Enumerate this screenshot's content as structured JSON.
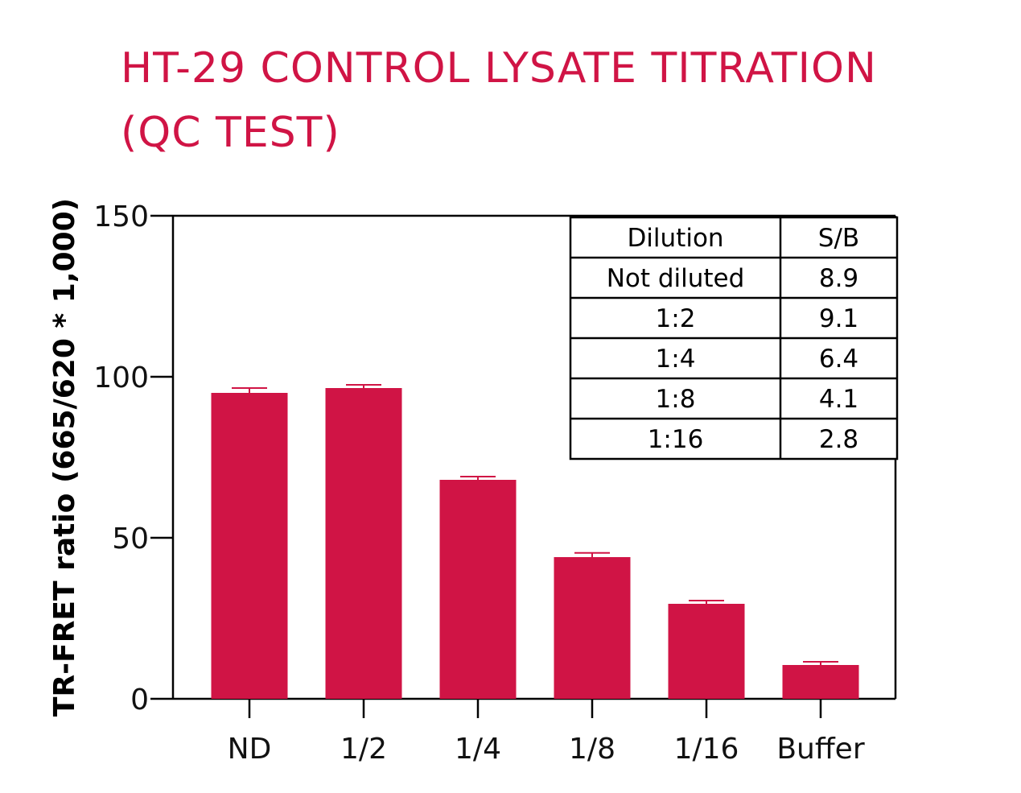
{
  "title_line1": "HT-29 CONTROL LYSATE TITRATION",
  "title_line2": "(QC TEST)",
  "colors": {
    "bar": "#d01445",
    "title": "#d01445",
    "axis": "#000000"
  },
  "chart_data": {
    "type": "bar",
    "title": "HT-29 CONTROL LYSATE TITRATION (QC TEST)",
    "xlabel": "",
    "ylabel": "TR-FRET ratio (665/620 * 1,000)",
    "categories": [
      "ND",
      "1/2",
      "1/4",
      "1/8",
      "1/16",
      "Buffer"
    ],
    "values": [
      95,
      96.5,
      68,
      44,
      29.5,
      10.5
    ],
    "error": [
      1.5,
      1,
      1,
      1.3,
      1,
      1
    ],
    "ylim": [
      0,
      150
    ],
    "yticks": [
      0,
      50,
      100,
      150
    ],
    "grid": false,
    "legend": "none"
  },
  "table": {
    "headers": [
      "Dilution",
      "S/B"
    ],
    "rows": [
      [
        "Not diluted",
        "8.9"
      ],
      [
        "1:2",
        "9.1"
      ],
      [
        "1:4",
        "6.4"
      ],
      [
        "1:8",
        "4.1"
      ],
      [
        "1:16",
        "2.8"
      ]
    ]
  }
}
